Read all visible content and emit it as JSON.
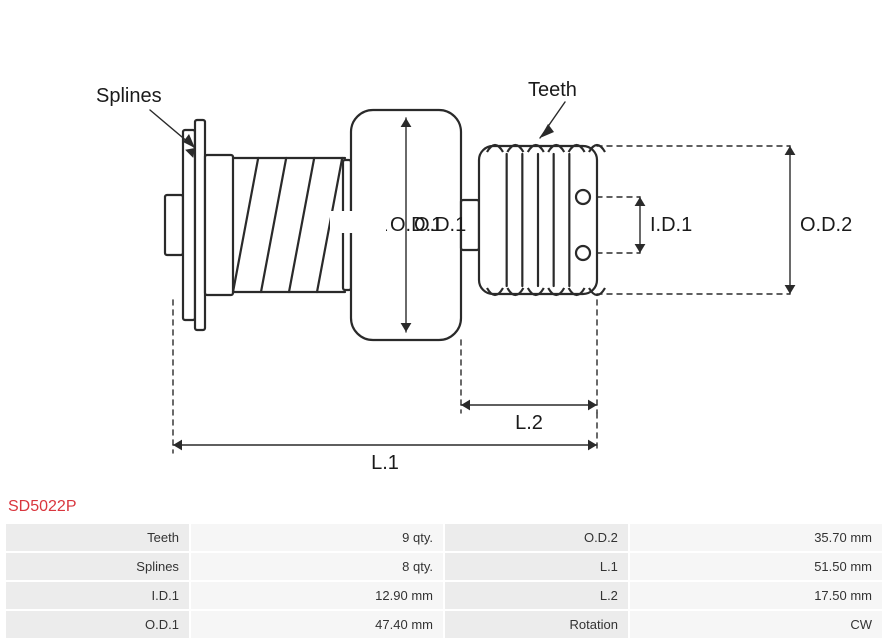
{
  "part_code": "SD5022P",
  "diagram": {
    "type": "engineering-drawing",
    "stroke_color": "#2a2a2a",
    "stroke_width": 2.2,
    "dim_stroke": "#2a2a2a",
    "dim_width": 1.4,
    "dash": "5,5",
    "text_color": "#1a1a1a",
    "label_font_size": 20,
    "labels": {
      "splines": "Splines",
      "teeth": "Teeth",
      "od1": "O.D.1",
      "od2": "O.D.2",
      "id1": "I.D.1",
      "l1": "L.1",
      "l2": "L.2"
    }
  },
  "specs": {
    "rows": [
      {
        "k1": "Teeth",
        "v1": "9 qty.",
        "k2": "O.D.2",
        "v2": "35.70 mm"
      },
      {
        "k1": "Splines",
        "v1": "8 qty.",
        "k2": "L.1",
        "v2": "51.50 mm"
      },
      {
        "k1": "I.D.1",
        "v1": "12.90 mm",
        "k2": "L.2",
        "v2": "17.50 mm"
      },
      {
        "k1": "O.D.1",
        "v1": "47.40 mm",
        "k2": "Rotation",
        "v2": "CW"
      }
    ]
  }
}
